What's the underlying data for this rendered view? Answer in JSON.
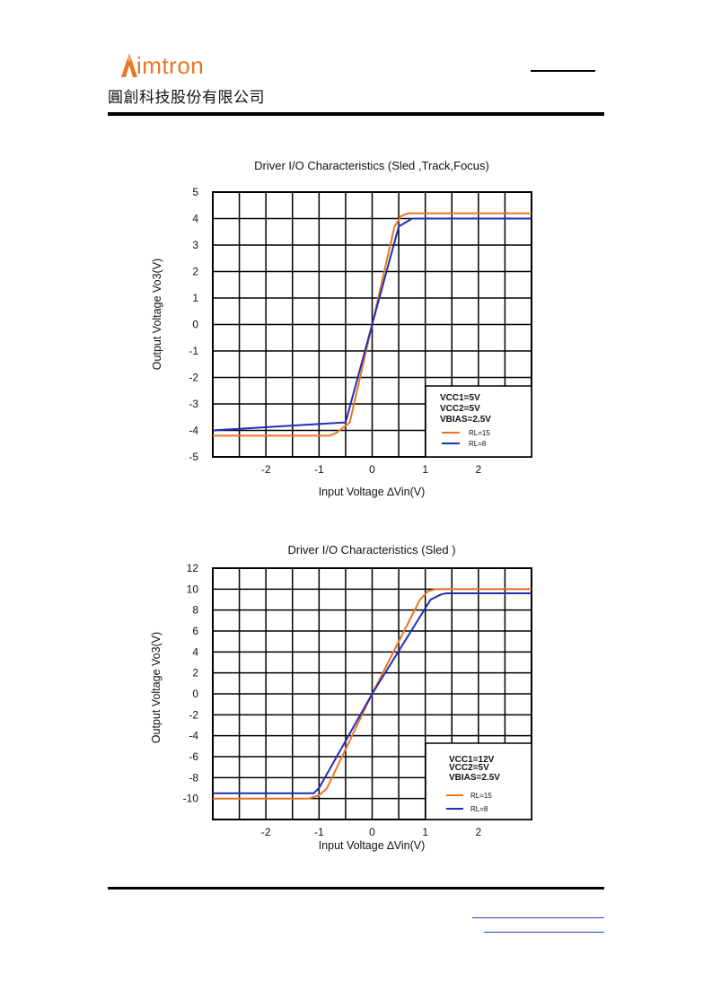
{
  "header": {
    "logo_text": "imtron",
    "company_name": "圓創科技股份有限公司"
  },
  "colors": {
    "orange": "#e87722",
    "blue": "#1f2fb5",
    "black": "#000000"
  },
  "chart_data": [
    {
      "type": "line",
      "title": "Driver I/O Characteristics (Sled ,Track,Focus)",
      "xlabel": "Input Voltage ∆Vin(V)",
      "ylabel": "Output Voltage Vo3(V)",
      "xlim": [
        -3,
        3
      ],
      "ylim": [
        -5,
        5
      ],
      "xticks": [
        -2,
        -1,
        0,
        1,
        2
      ],
      "xtick_labels": [
        "-2",
        "-1",
        "0",
        "1",
        "2"
      ],
      "yticks": [
        5,
        4,
        3,
        2,
        1,
        0,
        -1,
        -2,
        -3,
        -4,
        -5
      ],
      "ytick_labels": [
        "5",
        "4",
        "3",
        "2",
        "1",
        "0",
        "-1",
        "-2",
        "-3",
        "-4",
        "-5"
      ],
      "grid": true,
      "x_grid_step": 0.5,
      "y_grid_step": 1,
      "conditions": [
        "VCC1=5V",
        "VCC2=5V",
        "VBIAS=2.5V"
      ],
      "legend_position": "bottom-right",
      "series": [
        {
          "name": "RL=15",
          "color": "#e87722",
          "x": [
            -3,
            -0.8,
            -0.68,
            -0.42,
            0,
            0.42,
            0.55,
            0.68,
            3
          ],
          "y": [
            -4.2,
            -4.2,
            -4.1,
            -3.7,
            0,
            3.7,
            4.1,
            4.2,
            4.2
          ]
        },
        {
          "name": "RL=8",
          "color": "#1f2fb5",
          "x": [
            -3,
            -0.5,
            0,
            0.5,
            0.75,
            3
          ],
          "y": [
            -4.0,
            -3.7,
            0,
            3.7,
            4.0,
            4.0
          ]
        }
      ]
    },
    {
      "type": "line",
      "title": "Driver I/O Characteristics (Sled )",
      "xlabel": "Input Voltage ∆Vin(V)",
      "ylabel": "Output Voltage Vo3(V)",
      "xlim": [
        -3,
        3
      ],
      "ylim": [
        -12,
        12
      ],
      "xticks": [
        -2,
        -1,
        0,
        1,
        2
      ],
      "xtick_labels": [
        "-2",
        "-1",
        "0",
        "1",
        "2"
      ],
      "yticks": [
        12,
        10,
        8,
        6,
        4,
        2,
        0,
        -2,
        -4,
        -6,
        -8,
        -10
      ],
      "ytick_labels": [
        "12",
        "10",
        "8",
        "6",
        "4",
        "2",
        "0",
        "-2",
        "-4",
        "-6",
        "-8",
        "-10"
      ],
      "grid": true,
      "x_grid_step": 0.5,
      "y_grid_step": 2,
      "conditions": [
        "VCC1=12V",
        "VCC2=5V",
        "VBIAS=2.5V"
      ],
      "legend_position": "bottom-right",
      "series": [
        {
          "name": "RL=15",
          "color": "#e87722",
          "x": [
            -3,
            -1.2,
            -1.0,
            -0.85,
            0,
            0.9,
            1.05,
            1.2,
            3
          ],
          "y": [
            -10,
            -10,
            -9.7,
            -9,
            0,
            9,
            9.8,
            10,
            10
          ]
        },
        {
          "name": "RL=8",
          "color": "#1f2fb5",
          "x": [
            -3,
            -1.1,
            -1.0,
            0,
            1.1,
            1.3,
            1.4,
            3
          ],
          "y": [
            -9.5,
            -9.5,
            -9,
            0,
            9,
            9.5,
            9.6,
            9.6
          ]
        }
      ]
    }
  ]
}
